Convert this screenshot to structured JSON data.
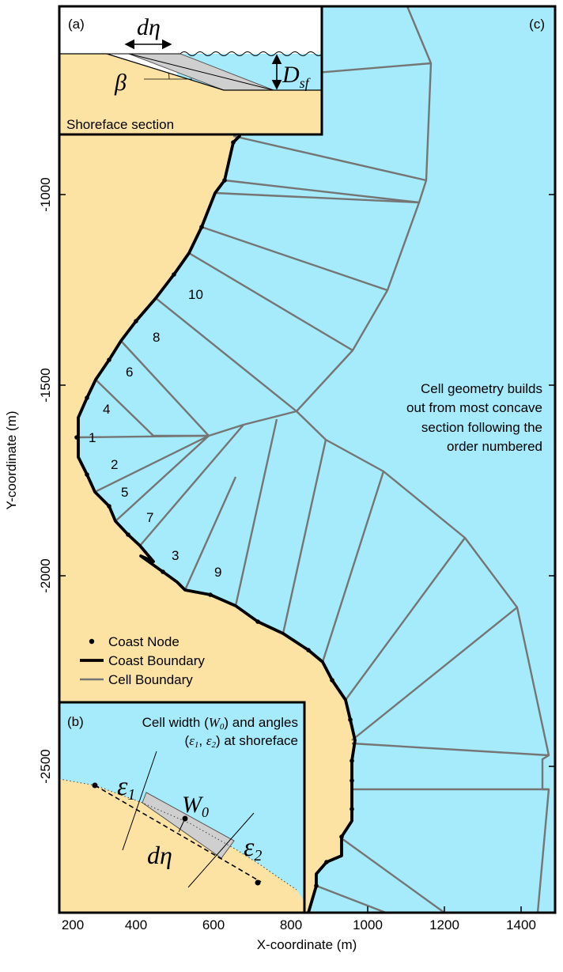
{
  "colors": {
    "water": "#a5ebfb",
    "land": "#fde3a3",
    "cell_boundary": "#757575",
    "coast_boundary": "#000000",
    "shoreface_slope": "#cfcfcf"
  },
  "axes": {
    "x_label": "X-coordinate (m)",
    "y_label": "Y-coordinate (m)",
    "x_ticks": [
      "200",
      "400",
      "600",
      "800",
      "1000",
      "1200",
      "1400"
    ],
    "y_ticks": [
      "-1000",
      "-1500",
      "-2000",
      "-2500"
    ]
  },
  "panel_c": {
    "label": "(c)",
    "annotation_lines": [
      "Cell geometry builds",
      "out from most concave",
      "section following the",
      "order numbered"
    ],
    "cell_numbers": [
      "1",
      "2",
      "3",
      "4",
      "5",
      "6",
      "7",
      "8",
      "9",
      "10"
    ]
  },
  "legend": {
    "coast_node": "Coast Node",
    "coast_boundary": "Coast Boundary",
    "cell_boundary": "Cell Boundary"
  },
  "panel_a": {
    "label": "(a)",
    "caption": "Shoreface section",
    "d_eta": "dη",
    "beta": "β",
    "d_sf_main": "D",
    "d_sf_sub": "sf"
  },
  "panel_b": {
    "label": "(b)",
    "title_line1_text": "Cell width (",
    "title_line1_symbol": "W",
    "title_line1_sub": "0",
    "title_line1_end": ") and angles",
    "title_line2_start": "(",
    "title_line2_e1": "ε",
    "title_line2_e1_sub": "1",
    "title_line2_sep": ", ",
    "title_line2_e2": "ε",
    "title_line2_e2_sub": "2",
    "title_line2_end": ") at shoreface",
    "eps1": "ε",
    "eps1_sub": "1",
    "eps2": "ε",
    "eps2_sub": "2",
    "w0": "W",
    "w0_sub": "0",
    "d_eta": "dη"
  }
}
